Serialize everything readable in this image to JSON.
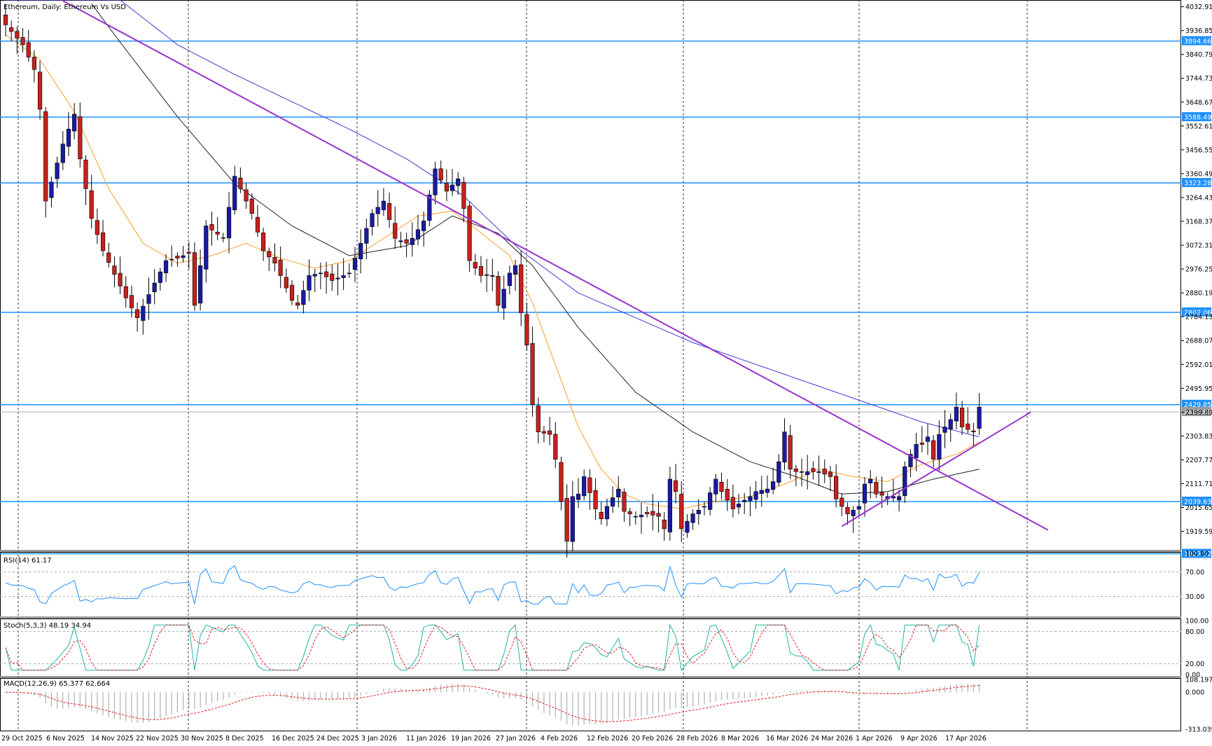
{
  "header": {
    "main_title": "Ethereum, Daily:  Ethereum Vs USD",
    "rsi_label": "RSI(14) 61.17",
    "stoch_label": "Stoch(5,3,3) 48.19 34.94",
    "macd_label": "MACD(12,26,9) 65.377 62.664"
  },
  "colors": {
    "bull": "#1a1aa6",
    "bear": "#c8201c",
    "hline": "#1e90ff",
    "trendline": "#9932cc",
    "ma_fast": "#ff9f2e",
    "ma_slow": "#222222",
    "ma_long": "#3b3bd6",
    "rsi": "#1e90ff",
    "stoch_main": "#20b2aa",
    "stoch_signal": "#e02020",
    "macd_hist": "#b0b0b0",
    "macd_signal": "#e02020"
  },
  "chart_data": {
    "type": "candlestick",
    "symbol": "Ethereum",
    "timeframe": "Daily",
    "price_ticks": [
      "4032.91",
      "3936.85",
      "3840.79",
      "3744.73",
      "3648.67",
      "3552.61",
      "3456.55",
      "3360.49",
      "3264.43",
      "3168.37",
      "3072.31",
      "2976.25",
      "2880.19",
      "2784.13",
      "2688.07",
      "2592.01",
      "2495.95",
      "2399.89",
      "2303.83",
      "2207.77",
      "2111.71",
      "2015.65",
      "1919.59"
    ],
    "ylim": [
      1845,
      4060
    ],
    "horizontal_levels": [
      {
        "value": 3894.66,
        "label": "3894.66"
      },
      {
        "value": 3588.49,
        "label": "3588.49"
      },
      {
        "value": 3323.28,
        "label": "3323.28"
      },
      {
        "value": 2802.06,
        "label": "2802.06"
      },
      {
        "value": 2429.85,
        "label": "2429.85"
      },
      {
        "value": 2039.63,
        "label": "2039.63"
      },
      {
        "value": 1829.52,
        "label": "1829.52"
      }
    ],
    "current_price": {
      "value": 2400.86,
      "label": "2400.86"
    },
    "date_ticks": [
      "29 Oct 2025",
      "6 Nov 2025",
      "14 Nov 2025",
      "22 Nov 2025",
      "30 Nov 2025",
      "8 Dec 2025",
      "16 Dec 2025",
      "24 Dec 2025",
      "3 Jan 2026",
      "11 Jan 2026",
      "19 Jan 2026",
      "27 Jan 2026",
      "4 Feb 2026",
      "12 Feb 2026",
      "20 Feb 2026",
      "28 Feb 2026",
      "8 Mar 2026",
      "16 Mar 2026",
      "24 Mar 2026",
      "1 Apr 2026",
      "9 Apr 2026",
      "17 Apr 2026"
    ],
    "price_keypoints": [
      [
        0,
        3960
      ],
      [
        3,
        3880
      ],
      [
        5,
        3780
      ],
      [
        6,
        3620
      ],
      [
        7,
        3250
      ],
      [
        10,
        3480
      ],
      [
        12,
        3600
      ],
      [
        13,
        3420
      ],
      [
        15,
        3180
      ],
      [
        17,
        3050
      ],
      [
        21,
        2860
      ],
      [
        23,
        2780
      ],
      [
        26,
        2920
      ],
      [
        28,
        3010
      ],
      [
        30,
        3020
      ],
      [
        32,
        3040
      ],
      [
        33,
        2830
      ],
      [
        35,
        3150
      ],
      [
        38,
        3100
      ],
      [
        40,
        3350
      ],
      [
        43,
        3200
      ],
      [
        45,
        3050
      ],
      [
        47,
        3000
      ],
      [
        50,
        2850
      ],
      [
        51,
        2830
      ],
      [
        53,
        2950
      ],
      [
        55,
        2960
      ],
      [
        57,
        2930
      ],
      [
        60,
        2960
      ],
      [
        62,
        3080
      ],
      [
        64,
        3200
      ],
      [
        66,
        3250
      ],
      [
        68,
        3100
      ],
      [
        70,
        3080
      ],
      [
        71,
        3100
      ],
      [
        73,
        3170
      ],
      [
        75,
        3380
      ],
      [
        77,
        3290
      ],
      [
        79,
        3340
      ],
      [
        80,
        3220
      ],
      [
        81,
        3010
      ],
      [
        83,
        2950
      ],
      [
        85,
        2950
      ],
      [
        86,
        2830
      ],
      [
        88,
        2960
      ],
      [
        89,
        2990
      ],
      [
        90,
        2800
      ],
      [
        91,
        2670
      ],
      [
        92,
        2430
      ],
      [
        93,
        2320
      ],
      [
        95,
        2310
      ],
      [
        96,
        2210
      ],
      [
        97,
        2040
      ],
      [
        98,
        1880
      ],
      [
        99,
        2060
      ],
      [
        100,
        2070
      ],
      [
        101,
        2140
      ],
      [
        103,
        2010
      ],
      [
        104,
        1970
      ],
      [
        105,
        2020
      ],
      [
        107,
        2090
      ],
      [
        108,
        2000
      ],
      [
        110,
        1980
      ],
      [
        112,
        1990
      ],
      [
        114,
        1980
      ],
      [
        115,
        1930
      ],
      [
        116,
        2130
      ],
      [
        117,
        2080
      ],
      [
        118,
        1930
      ],
      [
        120,
        1990
      ],
      [
        122,
        2020
      ],
      [
        124,
        2130
      ],
      [
        125,
        2080
      ],
      [
        127,
        2010
      ],
      [
        128,
        2030
      ],
      [
        130,
        2060
      ],
      [
        131,
        2080
      ],
      [
        133,
        2090
      ],
      [
        134,
        2120
      ],
      [
        135,
        2200
      ],
      [
        136,
        2320
      ],
      [
        137,
        2170
      ],
      [
        138,
        2160
      ],
      [
        140,
        2160
      ],
      [
        142,
        2160
      ],
      [
        144,
        2140
      ],
      [
        145,
        2050
      ],
      [
        146,
        2020
      ],
      [
        147,
        1990
      ],
      [
        149,
        2020
      ],
      [
        150,
        2110
      ],
      [
        151,
        2130
      ],
      [
        152,
        2070
      ],
      [
        154,
        2060
      ],
      [
        156,
        2060
      ],
      [
        157,
        2180
      ],
      [
        158,
        2230
      ],
      [
        159,
        2270
      ],
      [
        160,
        2270
      ],
      [
        161,
        2300
      ],
      [
        162,
        2210
      ],
      [
        163,
        2310
      ],
      [
        164,
        2340
      ],
      [
        165,
        2370
      ],
      [
        166,
        2420
      ],
      [
        167,
        2340
      ],
      [
        168,
        2330
      ],
      [
        169,
        2320
      ],
      [
        170,
        2420
      ]
    ],
    "ma_fast_keypoints": [
      [
        0,
        3920
      ],
      [
        6,
        3820
      ],
      [
        12,
        3610
      ],
      [
        18,
        3300
      ],
      [
        24,
        3080
      ],
      [
        30,
        3000
      ],
      [
        36,
        3030
      ],
      [
        42,
        3080
      ],
      [
        48,
        3020
      ],
      [
        54,
        2980
      ],
      [
        60,
        3010
      ],
      [
        66,
        3100
      ],
      [
        72,
        3190
      ],
      [
        78,
        3210
      ],
      [
        82,
        3140
      ],
      [
        88,
        3030
      ],
      [
        92,
        2840
      ],
      [
        96,
        2590
      ],
      [
        100,
        2340
      ],
      [
        104,
        2170
      ],
      [
        108,
        2070
      ],
      [
        112,
        2030
      ],
      [
        118,
        2010
      ],
      [
        124,
        2040
      ],
      [
        130,
        2060
      ],
      [
        136,
        2110
      ],
      [
        142,
        2170
      ],
      [
        148,
        2140
      ],
      [
        154,
        2120
      ],
      [
        160,
        2190
      ],
      [
        166,
        2230
      ],
      [
        170,
        2280
      ]
    ],
    "ma_slow_keypoints": [
      [
        0,
        4280
      ],
      [
        10,
        4200
      ],
      [
        20,
        3890
      ],
      [
        30,
        3590
      ],
      [
        40,
        3320
      ],
      [
        50,
        3150
      ],
      [
        60,
        3030
      ],
      [
        70,
        3070
      ],
      [
        78,
        3190
      ],
      [
        86,
        3120
      ],
      [
        92,
        2990
      ],
      [
        100,
        2740
      ],
      [
        110,
        2480
      ],
      [
        120,
        2320
      ],
      [
        130,
        2200
      ],
      [
        138,
        2140
      ],
      [
        146,
        2070
      ],
      [
        154,
        2080
      ],
      [
        162,
        2130
      ],
      [
        170,
        2170
      ]
    ],
    "ma_long_keypoints": [
      [
        20,
        4060
      ],
      [
        30,
        3880
      ],
      [
        40,
        3760
      ],
      [
        50,
        3650
      ],
      [
        60,
        3540
      ],
      [
        70,
        3420
      ],
      [
        80,
        3270
      ],
      [
        90,
        3050
      ],
      [
        100,
        2880
      ],
      [
        110,
        2780
      ],
      [
        120,
        2680
      ],
      [
        130,
        2600
      ],
      [
        140,
        2520
      ],
      [
        150,
        2440
      ],
      [
        160,
        2360
      ],
      [
        170,
        2300
      ]
    ],
    "trendlines": [
      {
        "name": "descending-resistance",
        "points": [
          [
            -8,
            4280
          ],
          [
            182,
            1925
          ]
        ]
      },
      {
        "name": "rising-support",
        "points": [
          [
            146,
            1940
          ],
          [
            179,
            2400
          ]
        ]
      }
    ],
    "indicators": {
      "rsi": {
        "range": [
          0,
          100
        ],
        "levels": [
          30,
          70
        ],
        "ticks": [
          "100.00",
          "70.00",
          "30.00"
        ],
        "value": 61.17
      },
      "stoch": {
        "params": "5,3,3",
        "range": [
          0,
          100
        ],
        "levels": [
          20,
          80
        ],
        "ticks": [
          "100.00",
          "80.00",
          "20.00",
          "0.00"
        ],
        "main": 48.19,
        "signal": 34.94
      },
      "macd": {
        "params": "12,26,9",
        "range": [
          -313.039,
          108.197
        ],
        "ticks": [
          "108.197",
          "0.000",
          "-313.039"
        ],
        "main": 65.377,
        "signal": 62.664
      }
    }
  }
}
